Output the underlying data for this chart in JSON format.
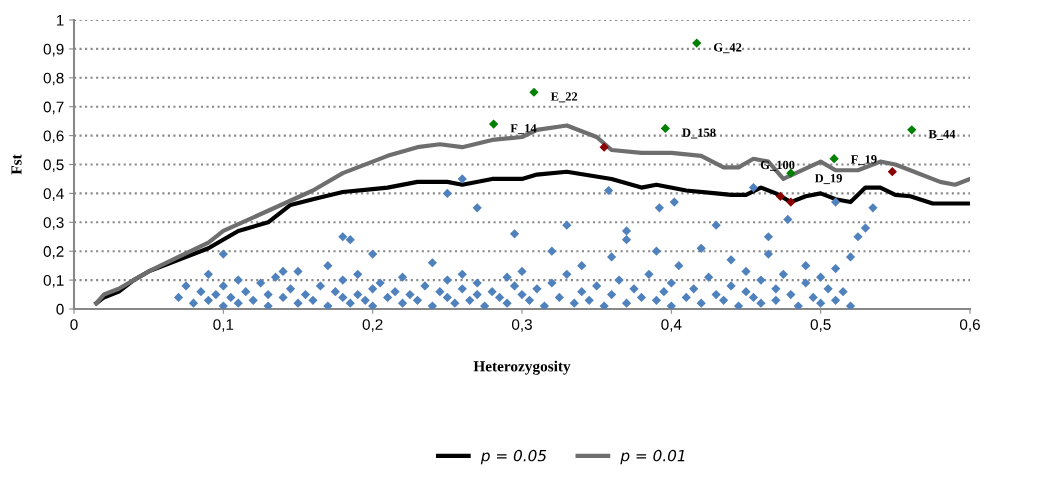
{
  "chart_data": {
    "type": "scatter",
    "xlabel": "Heterozygosity",
    "ylabel": "Fst",
    "xlim": [
      0,
      0.6
    ],
    "ylim": [
      0,
      1
    ],
    "xticks": [
      0,
      {
        "value": 0.1,
        "label": "0,1"
      },
      {
        "value": 0.2,
        "label": "0,2"
      },
      {
        "value": 0.3,
        "label": "0,3"
      },
      {
        "value": 0.4,
        "label": "0,4"
      },
      {
        "value": 0.5,
        "label": "0,5"
      },
      {
        "value": 0.6,
        "label": "0,6"
      }
    ],
    "yticks": [
      0,
      {
        "value": 0.1,
        "label": "0,1"
      },
      {
        "value": 0.2,
        "label": "0,2"
      },
      {
        "value": 0.3,
        "label": "0,3"
      },
      {
        "value": 0.4,
        "label": "0,4"
      },
      {
        "value": 0.5,
        "label": "0,5"
      },
      {
        "value": 0.6,
        "label": "0,6"
      },
      {
        "value": 0.7,
        "label": "0,7"
      },
      {
        "value": 0.8,
        "label": "0,8"
      },
      {
        "value": 0.9,
        "label": "0,9"
      },
      1
    ],
    "grid": "y",
    "legend": "bottom",
    "series": [
      {
        "marker": "diamond",
        "color": "#4f81bd",
        "x": [
          0.07,
          0.075,
          0.08,
          0.085,
          0.09,
          0.09,
          0.095,
          0.1,
          0.1,
          0.105,
          0.11,
          0.11,
          0.115,
          0.12,
          0.125,
          0.13,
          0.13,
          0.135,
          0.14,
          0.145,
          0.15,
          0.15,
          0.155,
          0.16,
          0.165,
          0.17,
          0.17,
          0.175,
          0.18,
          0.18,
          0.185,
          0.19,
          0.19,
          0.195,
          0.2,
          0.2,
          0.205,
          0.21,
          0.215,
          0.22,
          0.22,
          0.225,
          0.23,
          0.235,
          0.24,
          0.24,
          0.245,
          0.25,
          0.25,
          0.255,
          0.26,
          0.26,
          0.265,
          0.27,
          0.27,
          0.275,
          0.28,
          0.285,
          0.29,
          0.29,
          0.295,
          0.3,
          0.3,
          0.305,
          0.31,
          0.315,
          0.32,
          0.32,
          0.325,
          0.33,
          0.335,
          0.34,
          0.34,
          0.345,
          0.35,
          0.355,
          0.36,
          0.36,
          0.365,
          0.37,
          0.37,
          0.375,
          0.38,
          0.385,
          0.39,
          0.39,
          0.395,
          0.4,
          0.4,
          0.405,
          0.41,
          0.415,
          0.42,
          0.42,
          0.425,
          0.43,
          0.435,
          0.44,
          0.44,
          0.445,
          0.45,
          0.45,
          0.455,
          0.46,
          0.46,
          0.465,
          0.47,
          0.47,
          0.475,
          0.48,
          0.485,
          0.49,
          0.49,
          0.495,
          0.5,
          0.5,
          0.505,
          0.51,
          0.51,
          0.515,
          0.52,
          0.52,
          0.525,
          0.53,
          0.1,
          0.18,
          0.185,
          0.26,
          0.25,
          0.27,
          0.358,
          0.402,
          0.392,
          0.455,
          0.478,
          0.51,
          0.535,
          0.295,
          0.33,
          0.37,
          0.43,
          0.465,
          0.2,
          0.14
        ],
        "values": [
          0.04,
          0.08,
          0.02,
          0.06,
          0.12,
          0.03,
          0.05,
          0.01,
          0.08,
          0.04,
          0.1,
          0.02,
          0.06,
          0.03,
          0.09,
          0.05,
          0.01,
          0.11,
          0.04,
          0.07,
          0.02,
          0.13,
          0.05,
          0.03,
          0.08,
          0.15,
          0.01,
          0.06,
          0.04,
          0.1,
          0.02,
          0.05,
          0.12,
          0.03,
          0.07,
          0.01,
          0.09,
          0.04,
          0.06,
          0.02,
          0.11,
          0.05,
          0.03,
          0.08,
          0.16,
          0.01,
          0.06,
          0.04,
          0.1,
          0.02,
          0.07,
          0.12,
          0.03,
          0.05,
          0.09,
          0.01,
          0.06,
          0.04,
          0.11,
          0.02,
          0.08,
          0.05,
          0.13,
          0.03,
          0.07,
          0.01,
          0.09,
          0.2,
          0.04,
          0.12,
          0.02,
          0.06,
          0.15,
          0.03,
          0.08,
          0.01,
          0.05,
          0.18,
          0.1,
          0.02,
          0.24,
          0.07,
          0.04,
          0.12,
          0.03,
          0.2,
          0.06,
          0.01,
          0.09,
          0.15,
          0.04,
          0.07,
          0.02,
          0.21,
          0.11,
          0.05,
          0.03,
          0.08,
          0.17,
          0.01,
          0.06,
          0.13,
          0.04,
          0.1,
          0.02,
          0.19,
          0.07,
          0.03,
          0.12,
          0.05,
          0.01,
          0.09,
          0.15,
          0.04,
          0.02,
          0.11,
          0.07,
          0.03,
          0.14,
          0.06,
          0.01,
          0.18,
          0.25,
          0.28,
          0.19,
          0.25,
          0.24,
          0.45,
          0.4,
          0.35,
          0.41,
          0.37,
          0.35,
          0.42,
          0.31,
          0.37,
          0.35,
          0.26,
          0.29,
          0.27,
          0.29,
          0.25,
          0.19,
          0.13
        ]
      },
      {
        "marker": "diamond",
        "color": "#008000",
        "x": [
          0.281,
          0.308,
          0.417,
          0.396,
          0.561,
          0.48,
          0.509
        ],
        "values": [
          0.64,
          0.75,
          0.92,
          0.625,
          0.62,
          0.47,
          0.52
        ]
      },
      {
        "marker": "diamond",
        "color": "#8b0000",
        "x": [
          0.355,
          0.473,
          0.48,
          0.548
        ],
        "values": [
          0.56,
          0.39,
          0.37,
          0.475
        ]
      },
      {
        "type": "line",
        "name": "p = 0.05",
        "color": "#000000",
        "x": [
          0.015,
          0.02,
          0.03,
          0.04,
          0.05,
          0.07,
          0.09,
          0.11,
          0.13,
          0.145,
          0.16,
          0.18,
          0.2,
          0.21,
          0.23,
          0.25,
          0.26,
          0.28,
          0.3,
          0.31,
          0.33,
          0.36,
          0.38,
          0.39,
          0.41,
          0.43,
          0.44,
          0.45,
          0.46,
          0.47,
          0.48,
          0.49,
          0.5,
          0.51,
          0.52,
          0.53,
          0.54,
          0.55,
          0.56,
          0.575,
          0.6
        ],
        "values": [
          0.02,
          0.04,
          0.06,
          0.1,
          0.13,
          0.17,
          0.21,
          0.27,
          0.3,
          0.36,
          0.38,
          0.405,
          0.415,
          0.42,
          0.44,
          0.44,
          0.43,
          0.45,
          0.45,
          0.465,
          0.475,
          0.45,
          0.42,
          0.43,
          0.41,
          0.4,
          0.395,
          0.395,
          0.42,
          0.4,
          0.37,
          0.39,
          0.4,
          0.38,
          0.37,
          0.42,
          0.42,
          0.395,
          0.39,
          0.365,
          0.365
        ]
      },
      {
        "type": "line",
        "name": "p = 0.01",
        "color": "#6e6e6e",
        "x": [
          0.015,
          0.02,
          0.03,
          0.04,
          0.05,
          0.07,
          0.09,
          0.1,
          0.13,
          0.16,
          0.18,
          0.21,
          0.23,
          0.245,
          0.26,
          0.28,
          0.3,
          0.31,
          0.33,
          0.35,
          0.36,
          0.38,
          0.4,
          0.42,
          0.435,
          0.445,
          0.455,
          0.465,
          0.475,
          0.5,
          0.51,
          0.525,
          0.54,
          0.55,
          0.56,
          0.58,
          0.59,
          0.6
        ],
        "values": [
          0.02,
          0.05,
          0.07,
          0.1,
          0.13,
          0.18,
          0.23,
          0.27,
          0.34,
          0.41,
          0.47,
          0.53,
          0.56,
          0.57,
          0.56,
          0.585,
          0.595,
          0.62,
          0.635,
          0.595,
          0.55,
          0.54,
          0.54,
          0.53,
          0.49,
          0.49,
          0.52,
          0.51,
          0.45,
          0.51,
          0.48,
          0.48,
          0.51,
          0.5,
          0.48,
          0.44,
          0.43,
          0.45
        ]
      }
    ],
    "annotations": [
      {
        "text": "F_14",
        "x": 0.281,
        "y": 0.64
      },
      {
        "text": "E_22",
        "x": 0.308,
        "y": 0.75
      },
      {
        "text": "G_42",
        "x": 0.417,
        "y": 0.92
      },
      {
        "text": "D_158",
        "x": 0.396,
        "y": 0.625
      },
      {
        "text": "B_44",
        "x": 0.561,
        "y": 0.62
      },
      {
        "text": "G_100",
        "x": 0.48,
        "y": 0.47
      },
      {
        "text": "D_19",
        "x": 0.509,
        "y": 0.52
      },
      {
        "text": "F_19",
        "x": 0.548,
        "y": 0.475
      }
    ]
  }
}
